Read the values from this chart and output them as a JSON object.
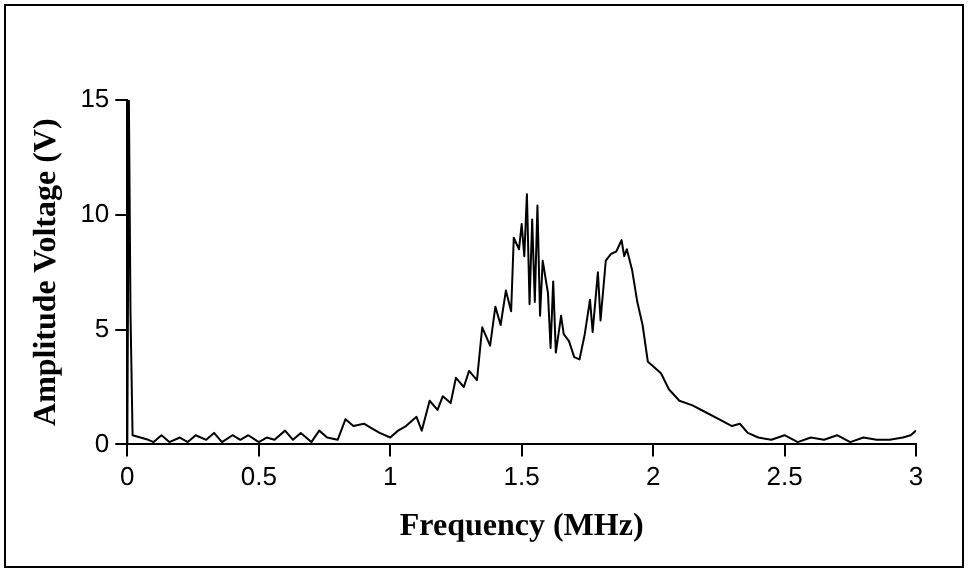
{
  "chart_data": {
    "type": "line",
    "xlabel": "Frequency (MHz)",
    "ylabel": "Amplitude Voltage (V)",
    "xlim": [
      0,
      3
    ],
    "xticks": [
      0,
      0.5,
      1,
      1.5,
      2,
      2.5,
      3
    ],
    "ylim": [
      0,
      15
    ],
    "yticks": [
      0,
      5,
      10,
      15
    ],
    "grid": false,
    "legend": false,
    "marker": "none",
    "line_style": "solid",
    "series": [
      {
        "color": "#000000",
        "x": [
          0,
          0.006,
          0.012,
          0.02,
          0.05,
          0.08,
          0.1,
          0.13,
          0.16,
          0.2,
          0.23,
          0.26,
          0.3,
          0.33,
          0.36,
          0.4,
          0.43,
          0.46,
          0.5,
          0.53,
          0.56,
          0.6,
          0.63,
          0.66,
          0.7,
          0.73,
          0.76,
          0.8,
          0.83,
          0.86,
          0.9,
          0.93,
          0.96,
          1.0,
          1.03,
          1.06,
          1.1,
          1.12,
          1.15,
          1.18,
          1.2,
          1.23,
          1.25,
          1.28,
          1.3,
          1.33,
          1.35,
          1.38,
          1.4,
          1.42,
          1.44,
          1.46,
          1.47,
          1.49,
          1.5,
          1.51,
          1.52,
          1.53,
          1.54,
          1.55,
          1.56,
          1.57,
          1.58,
          1.6,
          1.61,
          1.62,
          1.63,
          1.65,
          1.66,
          1.68,
          1.7,
          1.72,
          1.74,
          1.76,
          1.77,
          1.79,
          1.8,
          1.82,
          1.84,
          1.86,
          1.88,
          1.89,
          1.9,
          1.92,
          1.94,
          1.96,
          1.98,
          2.0,
          2.03,
          2.06,
          2.1,
          2.15,
          2.2,
          2.25,
          2.3,
          2.33,
          2.36,
          2.4,
          2.45,
          2.5,
          2.55,
          2.6,
          2.65,
          2.7,
          2.75,
          2.8,
          2.85,
          2.9,
          2.95,
          2.98,
          3.0
        ],
        "values": [
          0,
          15,
          5.8,
          0.4,
          0.3,
          0.2,
          0.1,
          0.4,
          0.1,
          0.3,
          0.1,
          0.4,
          0.2,
          0.5,
          0.1,
          0.4,
          0.2,
          0.4,
          0.1,
          0.3,
          0.2,
          0.6,
          0.2,
          0.5,
          0.1,
          0.6,
          0.3,
          0.2,
          1.1,
          0.8,
          0.9,
          0.7,
          0.5,
          0.3,
          0.6,
          0.8,
          1.2,
          0.6,
          1.9,
          1.5,
          2.1,
          1.8,
          2.9,
          2.5,
          3.2,
          2.8,
          5.1,
          4.3,
          6.0,
          5.2,
          6.7,
          5.8,
          9.0,
          8.5,
          9.6,
          8.2,
          10.9,
          6.1,
          9.8,
          6.2,
          10.4,
          5.6,
          8.0,
          6.6,
          4.2,
          7.1,
          4.0,
          5.6,
          4.8,
          4.5,
          3.8,
          3.7,
          4.8,
          6.3,
          4.9,
          7.5,
          5.4,
          8.0,
          8.3,
          8.4,
          8.9,
          8.2,
          8.5,
          7.6,
          6.2,
          5.2,
          3.6,
          3.4,
          3.1,
          2.4,
          1.9,
          1.7,
          1.4,
          1.1,
          0.8,
          0.9,
          0.5,
          0.3,
          0.2,
          0.4,
          0.1,
          0.3,
          0.2,
          0.4,
          0.1,
          0.3,
          0.2,
          0.2,
          0.3,
          0.4,
          0.6
        ]
      }
    ]
  }
}
